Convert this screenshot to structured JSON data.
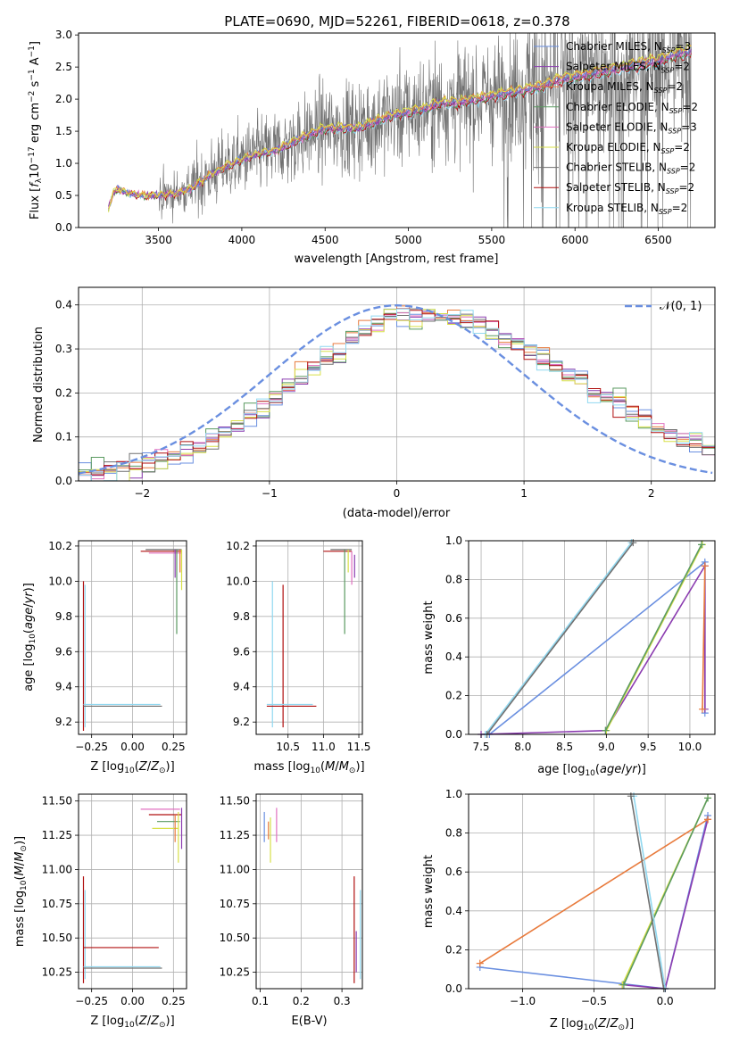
{
  "figure_title": "PLATE=0690, MJD=52261, FIBERID=0618, z=0.378",
  "colors": {
    "chabrier_miles": "#6a8fe0",
    "salpeter_miles": "#8b3cb0",
    "kroupa_miles": "#e87a3c",
    "chabrier_elodie": "#5a9a60",
    "salpeter_elodie": "#e070c0",
    "kroupa_elodie": "#d8e048",
    "chabrier_stelib": "#707070",
    "salpeter_stelib": "#b01010",
    "kroupa_stelib": "#90d8f0",
    "normal": "#6a8fe0",
    "grid": "#b0b0b0"
  },
  "chart_data": [
    {
      "id": "spectrum",
      "type": "line",
      "xlabel": "wavelength [Angstrom, rest frame]",
      "ylabel": "Flux [f_λ 10^-17 erg cm^-2 s^-1 A^-1]",
      "xlim": [
        3020,
        6840
      ],
      "ylim": [
        0,
        3.03
      ],
      "xticks": [
        3500,
        4000,
        4500,
        5000,
        5500,
        6000,
        6500
      ],
      "yticks": [
        0.0,
        0.5,
        1.0,
        1.5,
        2.0,
        2.5,
        3.0
      ],
      "legend_position": "upper-right",
      "legend": [
        {
          "label": "Chabrier MILES, N",
          "sub": "SSP",
          "suffix": "=3",
          "color_key": "chabrier_miles"
        },
        {
          "label": "Salpeter MILES, N",
          "sub": "SSP",
          "suffix": "=2",
          "color_key": "salpeter_miles"
        },
        {
          "label": "Kroupa MILES, N",
          "sub": "SSP",
          "suffix": "=2",
          "color_key": "kroupa_miles"
        },
        {
          "label": "Chabrier ELODIE, N",
          "sub": "SSP",
          "suffix": "=2",
          "color_key": "chabrier_elodie"
        },
        {
          "label": "Salpeter ELODIE, N",
          "sub": "SSP",
          "suffix": "=3",
          "color_key": "salpeter_elodie"
        },
        {
          "label": "Kroupa ELODIE, N",
          "sub": "SSP",
          "suffix": "=2",
          "color_key": "kroupa_elodie"
        },
        {
          "label": "Chabrier STELIB, N",
          "sub": "SSP",
          "suffix": "=2",
          "color_key": "chabrier_stelib"
        },
        {
          "label": "Salpeter STELIB, N",
          "sub": "SSP",
          "suffix": "=2",
          "color_key": "salpeter_stelib"
        },
        {
          "label": "Kroupa STELIB, N",
          "sub": "SSP",
          "suffix": "=2",
          "color_key": "kroupa_stelib"
        }
      ],
      "continuum": {
        "x": [
          3200,
          3230,
          3260,
          3300,
          3400,
          3500,
          3600,
          3700,
          3800,
          3900,
          4000,
          4100,
          4200,
          4300,
          4400,
          4500,
          4600,
          4700,
          4800,
          4900,
          5000,
          5100,
          5200,
          5300,
          5400,
          5500,
          5600,
          5700,
          5800,
          5900,
          6000,
          6100,
          6200,
          6300,
          6400,
          6500,
          6600,
          6700
        ],
        "y": [
          0.3,
          0.55,
          0.6,
          0.55,
          0.5,
          0.5,
          0.52,
          0.62,
          0.8,
          0.95,
          1.05,
          1.15,
          1.2,
          1.32,
          1.45,
          1.55,
          1.55,
          1.55,
          1.65,
          1.75,
          1.8,
          1.85,
          1.95,
          1.95,
          2.0,
          2.05,
          2.1,
          2.15,
          2.2,
          2.3,
          2.35,
          2.4,
          2.45,
          2.5,
          2.55,
          2.6,
          2.7,
          2.75
        ]
      }
    },
    {
      "id": "residuals",
      "type": "line",
      "xlabel": "(data-model)/error",
      "ylabel": "Normed distribution",
      "xlim": [
        -2.5,
        2.5
      ],
      "ylim": [
        0,
        0.44
      ],
      "xticks": [
        -2,
        -1,
        0,
        1,
        2
      ],
      "yticks": [
        0.0,
        0.1,
        0.2,
        0.3,
        0.4
      ],
      "legend_position": "upper-right",
      "legend": [
        {
          "label": "𝒩(0, 1)",
          "color_key": "normal"
        }
      ],
      "bin_width": 0.1
    },
    {
      "id": "age_z",
      "type": "scatter",
      "xlabel": "Z [log10(Z/Z⊙)]",
      "ylabel": "age [log10(age/yr)]",
      "xlim": [
        -0.33,
        0.33
      ],
      "ylim": [
        9.13,
        10.23
      ],
      "xticks": [
        -0.25,
        0.0,
        0.25
      ],
      "xticklabels": [
        "−0.25",
        "0.00",
        "0.25"
      ],
      "yticks": [
        9.2,
        9.4,
        9.6,
        9.8,
        10.0,
        10.2
      ],
      "yticklabels": [
        "9.2",
        "9.4",
        "9.6",
        "9.8",
        "10.0",
        "10.2"
      ],
      "segments": [
        {
          "x": [
            -0.3,
            -0.3
          ],
          "y": [
            9.15,
            10.0
          ],
          "color_key": "salpeter_stelib"
        },
        {
          "x": [
            -0.29,
            -0.29
          ],
          "y": [
            9.17,
            9.98
          ],
          "color_key": "kroupa_stelib"
        },
        {
          "x": [
            -0.3,
            0.18
          ],
          "y": [
            9.29,
            9.29
          ],
          "color_key": "chabrier_stelib"
        },
        {
          "x": [
            -0.3,
            0.17
          ],
          "y": [
            9.3,
            9.3
          ],
          "color_key": "kroupa_stelib"
        },
        {
          "x": [
            0.05,
            0.3
          ],
          "y": [
            10.17,
            10.17
          ],
          "color_key": "salpeter_stelib"
        },
        {
          "x": [
            0.1,
            0.3
          ],
          "y": [
            10.16,
            10.16
          ],
          "color_key": "salpeter_elodie"
        },
        {
          "x": [
            0.08,
            0.3
          ],
          "y": [
            10.18,
            10.18
          ],
          "color_key": "chabrier_stelib"
        },
        {
          "x": [
            0.27,
            0.27
          ],
          "y": [
            10.18,
            9.7
          ],
          "color_key": "chabrier_elodie"
        },
        {
          "x": [
            0.3,
            0.3
          ],
          "y": [
            10.18,
            9.95
          ],
          "color_key": "kroupa_elodie"
        },
        {
          "x": [
            0.26,
            0.26
          ],
          "y": [
            10.18,
            10.02
          ],
          "color_key": "salpeter_miles"
        },
        {
          "x": [
            0.29,
            0.29
          ],
          "y": [
            10.18,
            10.05
          ],
          "color_key": "kroupa_miles"
        }
      ]
    },
    {
      "id": "age_mass",
      "type": "scatter",
      "xlabel": "mass [log10(M/M⊙)]",
      "ylabel": "",
      "xlim": [
        10.05,
        11.55
      ],
      "ylim": [
        9.13,
        10.23
      ],
      "xticks": [
        10.5,
        11.0,
        11.5
      ],
      "xticklabels": [
        "10.5",
        "11.0",
        "11.5"
      ],
      "yticks": [
        9.2,
        9.4,
        9.6,
        9.8,
        10.0,
        10.2
      ],
      "yticklabels": [
        "9.2",
        "9.4",
        "9.6",
        "9.8",
        "10.0",
        "10.2"
      ],
      "segments": [
        {
          "x": [
            10.28,
            10.28
          ],
          "y": [
            9.17,
            10.0
          ],
          "color_key": "kroupa_stelib"
        },
        {
          "x": [
            10.43,
            10.43
          ],
          "y": [
            9.17,
            9.98
          ],
          "color_key": "salpeter_stelib"
        },
        {
          "x": [
            10.2,
            10.9
          ],
          "y": [
            9.29,
            9.29
          ],
          "color_key": "salpeter_stelib"
        },
        {
          "x": [
            10.2,
            10.85
          ],
          "y": [
            9.3,
            9.3
          ],
          "color_key": "kroupa_stelib"
        },
        {
          "x": [
            11.0,
            11.4
          ],
          "y": [
            10.17,
            10.17
          ],
          "color_key": "salpeter_stelib"
        },
        {
          "x": [
            11.1,
            11.4
          ],
          "y": [
            10.18,
            10.18
          ],
          "color_key": "chabrier_stelib"
        },
        {
          "x": [
            11.3,
            11.3
          ],
          "y": [
            10.18,
            9.7
          ],
          "color_key": "chabrier_elodie"
        },
        {
          "x": [
            11.35,
            11.35
          ],
          "y": [
            10.18,
            10.05
          ],
          "color_key": "kroupa_elodie"
        },
        {
          "x": [
            11.4,
            11.4
          ],
          "y": [
            10.17,
            9.98
          ],
          "color_key": "salpeter_elodie"
        },
        {
          "x": [
            11.44,
            11.44
          ],
          "y": [
            10.15,
            10.02
          ],
          "color_key": "salpeter_miles"
        }
      ]
    },
    {
      "id": "weight_age",
      "type": "line",
      "xlabel": "age [log10(age/yr)]",
      "ylabel": "mass weight",
      "xlim": [
        7.35,
        10.3
      ],
      "ylim": [
        0.0,
        1.0
      ],
      "xticks": [
        7.5,
        8.0,
        8.5,
        9.0,
        9.5,
        10.0
      ],
      "xticklabels": [
        "7.5",
        "8.0",
        "8.5",
        "9.0",
        "9.5",
        "10.0"
      ],
      "yticks": [
        0.0,
        0.2,
        0.4,
        0.6,
        0.8,
        1.0
      ],
      "yticklabels": [
        "0.0",
        "0.2",
        "0.4",
        "0.6",
        "0.8",
        "1.0"
      ],
      "series": [
        {
          "color_key": "chabrier_miles",
          "x": [
            7.6,
            10.18,
            10.18
          ],
          "y": [
            0.0,
            0.89,
            0.11
          ]
        },
        {
          "color_key": "salpeter_miles",
          "x": [
            7.5,
            8.99,
            10.18,
            10.18
          ],
          "y": [
            0.0,
            0.02,
            0.87,
            0.13
          ]
        },
        {
          "color_key": "kroupa_miles",
          "x": [
            10.15,
            10.18
          ],
          "y": [
            0.13,
            0.87
          ]
        },
        {
          "color_key": "kroupa_elodie",
          "x": [
            9.0,
            10.15
          ],
          "y": [
            0.02,
            0.98
          ]
        },
        {
          "color_key": "chabrier_elodie",
          "x": [
            8.99,
            10.14
          ],
          "y": [
            0.02,
            0.98
          ]
        },
        {
          "color_key": "kroupa_stelib",
          "x": [
            7.55,
            9.3
          ],
          "y": [
            0.0,
            0.99
          ]
        },
        {
          "color_key": "chabrier_stelib",
          "x": [
            7.57,
            9.32
          ],
          "y": [
            0.0,
            0.99
          ]
        }
      ]
    },
    {
      "id": "mass_z",
      "type": "scatter",
      "xlabel": "Z [log10(Z/Z⊙)]",
      "ylabel": "mass [log10(M/M⊙)]",
      "xlim": [
        -0.33,
        0.33
      ],
      "ylim": [
        10.13,
        11.55
      ],
      "xticks": [
        -0.25,
        0.0,
        0.25
      ],
      "xticklabels": [
        "−0.25",
        "0.00",
        "0.25"
      ],
      "yticks": [
        10.25,
        10.5,
        10.75,
        11.0,
        11.25,
        11.5
      ],
      "yticklabels": [
        "10.25",
        "10.50",
        "10.75",
        "11.00",
        "11.25",
        "11.50"
      ],
      "segments": [
        {
          "x": [
            -0.3,
            -0.3
          ],
          "y": [
            10.17,
            10.95
          ],
          "color_key": "salpeter_stelib"
        },
        {
          "x": [
            -0.29,
            -0.29
          ],
          "y": [
            10.2,
            10.85
          ],
          "color_key": "kroupa_stelib"
        },
        {
          "x": [
            -0.3,
            0.16
          ],
          "y": [
            10.43,
            10.43
          ],
          "color_key": "salpeter_stelib"
        },
        {
          "x": [
            -0.3,
            0.18
          ],
          "y": [
            10.28,
            10.28
          ],
          "color_key": "chabrier_stelib"
        },
        {
          "x": [
            -0.3,
            0.17
          ],
          "y": [
            10.29,
            10.29
          ],
          "color_key": "kroupa_stelib"
        },
        {
          "x": [
            0.05,
            0.29
          ],
          "y": [
            11.44,
            11.44
          ],
          "color_key": "salpeter_elodie"
        },
        {
          "x": [
            0.1,
            0.3
          ],
          "y": [
            11.4,
            11.4
          ],
          "color_key": "salpeter_stelib"
        },
        {
          "x": [
            0.15,
            0.29
          ],
          "y": [
            11.35,
            11.35
          ],
          "color_key": "chabrier_elodie"
        },
        {
          "x": [
            0.12,
            0.28
          ],
          "y": [
            11.3,
            11.3
          ],
          "color_key": "kroupa_elodie"
        },
        {
          "x": [
            0.28,
            0.28
          ],
          "y": [
            11.42,
            11.05
          ],
          "color_key": "kroupa_elodie"
        },
        {
          "x": [
            0.3,
            0.3
          ],
          "y": [
            11.45,
            11.15
          ],
          "color_key": "salpeter_miles"
        },
        {
          "x": [
            0.26,
            0.26
          ],
          "y": [
            11.4,
            11.2
          ],
          "color_key": "kroupa_miles"
        }
      ]
    },
    {
      "id": "mass_ebv",
      "type": "scatter",
      "xlabel": "E(B-V)",
      "ylabel": "",
      "xlim": [
        0.09,
        0.35
      ],
      "ylim": [
        10.13,
        11.55
      ],
      "xticks": [
        0.1,
        0.2,
        0.3
      ],
      "xticklabels": [
        "0.1",
        "0.2",
        "0.3"
      ],
      "yticks": [
        10.25,
        10.5,
        10.75,
        11.0,
        11.25,
        11.5
      ],
      "yticklabels": [
        "10.25",
        "10.50",
        "10.75",
        "11.00",
        "11.25",
        "11.50"
      ],
      "segments": [
        {
          "x": [
            0.11,
            0.11
          ],
          "y": [
            11.2,
            11.42
          ],
          "color_key": "chabrier_miles"
        },
        {
          "x": [
            0.12,
            0.12
          ],
          "y": [
            11.22,
            11.35
          ],
          "color_key": "kroupa_miles"
        },
        {
          "x": [
            0.125,
            0.125
          ],
          "y": [
            11.05,
            11.38
          ],
          "color_key": "kroupa_elodie"
        },
        {
          "x": [
            0.14,
            0.14
          ],
          "y": [
            11.2,
            11.45
          ],
          "color_key": "salpeter_elodie"
        },
        {
          "x": [
            0.33,
            0.33
          ],
          "y": [
            10.17,
            10.95
          ],
          "color_key": "salpeter_stelib"
        },
        {
          "x": [
            0.335,
            0.335
          ],
          "y": [
            10.25,
            10.55
          ],
          "color_key": "salpeter_miles"
        },
        {
          "x": [
            0.345,
            0.345
          ],
          "y": [
            10.2,
            10.85
          ],
          "color_key": "kroupa_stelib"
        }
      ]
    },
    {
      "id": "weight_z",
      "type": "line",
      "xlabel": "Z [log10(Z/Z⊙)]",
      "ylabel": "mass weight",
      "xlim": [
        -1.38,
        0.35
      ],
      "ylim": [
        0.0,
        1.0
      ],
      "xticks": [
        -1.0,
        -0.5,
        0.0
      ],
      "xticklabels": [
        "−1.0",
        "−0.5",
        "0.0"
      ],
      "yticks": [
        0.0,
        0.2,
        0.4,
        0.6,
        0.8,
        1.0
      ],
      "yticklabels": [
        "0.0",
        "0.2",
        "0.4",
        "0.6",
        "0.8",
        "1.0"
      ],
      "series": [
        {
          "color_key": "chabrier_miles",
          "x": [
            -1.3,
            0.0,
            0.3
          ],
          "y": [
            0.11,
            0.0,
            0.89
          ]
        },
        {
          "color_key": "salpeter_miles",
          "x": [
            -0.3,
            0.0,
            0.3
          ],
          "y": [
            0.02,
            0.0,
            0.87
          ]
        },
        {
          "color_key": "kroupa_miles",
          "x": [
            -1.3,
            0.3
          ],
          "y": [
            0.13,
            0.87
          ]
        },
        {
          "color_key": "kroupa_elodie",
          "x": [
            -0.3,
            0.3
          ],
          "y": [
            0.02,
            0.98
          ]
        },
        {
          "color_key": "chabrier_elodie",
          "x": [
            -0.29,
            0.3
          ],
          "y": [
            0.02,
            0.98
          ]
        },
        {
          "color_key": "kroupa_stelib",
          "x": [
            -0.22,
            0.0
          ],
          "y": [
            0.99,
            0.0
          ]
        },
        {
          "color_key": "chabrier_stelib",
          "x": [
            -0.24,
            -0.01
          ],
          "y": [
            0.99,
            0.0
          ]
        }
      ]
    }
  ]
}
